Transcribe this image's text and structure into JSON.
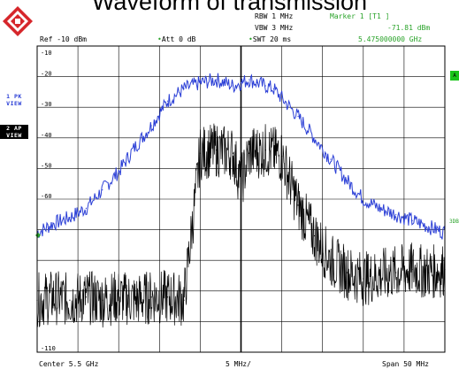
{
  "title": "Waveform of transmission",
  "header": {
    "rbw": "RBW 1 MHz",
    "vbw": "VBW 3 MHz",
    "swt": "SWT 20 ms",
    "marker_label": "Marker 1 [T1 ]",
    "marker_level": "-71.81 dBm",
    "marker_freq": "5.475000000 GHz",
    "ref": "Ref -10 dBm",
    "att": "Att  0 dB"
  },
  "traces": {
    "t1_line1": "1 PK",
    "t1_line2": "VIEW",
    "t2_line1": "2 AP",
    "t2_line2": "VIEW"
  },
  "side_labels": {
    "a": "A",
    "three_d": "3DB"
  },
  "footer": {
    "center": "Center 5.5 GHz",
    "div": "5 MHz/",
    "span": "Span 50 MHz"
  },
  "colors": {
    "trace1": "#2b3fd6",
    "trace2": "#000000",
    "grid": "#000000",
    "status_green": "#2aa32a",
    "logo_red": "#d6262b"
  },
  "chart_data": {
    "type": "line",
    "xlabel": "",
    "ylabel": "",
    "x_unit": "MHz",
    "y_unit": "dBm",
    "xlim": [
      5475,
      5525
    ],
    "ylim": [
      -110,
      -10
    ],
    "yticks": [
      -10,
      -20,
      -30,
      -40,
      -50,
      -60,
      -70,
      -80,
      -90,
      -100,
      -110
    ],
    "ytick_labels": [
      "-10",
      "-20",
      "-30",
      "-40",
      "-50",
      "-60",
      "",
      "",
      "",
      "",
      "-110"
    ],
    "grid": true,
    "marker": {
      "x": 5475,
      "y": -71.81
    },
    "series": [
      {
        "name": "1 PK VIEW",
        "x": [
          5475,
          5477,
          5479,
          5481,
          5483,
          5485,
          5487,
          5489,
          5491,
          5493,
          5495,
          5497,
          5498,
          5499,
          5500,
          5501,
          5502,
          5503,
          5504,
          5505,
          5507,
          5509,
          5511,
          5513,
          5515,
          5517,
          5519,
          5521,
          5523,
          5525
        ],
        "y": [
          -71,
          -68,
          -66,
          -63,
          -57,
          -51,
          -43,
          -36,
          -28,
          -24,
          -22,
          -21,
          -22,
          -23,
          -22,
          -21,
          -22,
          -23,
          -24,
          -27,
          -33,
          -40,
          -47,
          -54,
          -60,
          -63,
          -65,
          -67,
          -69,
          -71
        ]
      },
      {
        "name": "2 AP VIEW",
        "x": [
          5475,
          5477,
          5479,
          5481,
          5483,
          5485,
          5487,
          5489,
          5491,
          5493,
          5495,
          5497,
          5499,
          5500,
          5501,
          5503,
          5505,
          5507,
          5509,
          5511,
          5513,
          5515,
          5517,
          5519,
          5521,
          5523,
          5525
        ],
        "y": [
          -93,
          -92,
          -93,
          -92,
          -93,
          -92,
          -93,
          -92,
          -92,
          -93,
          -45,
          -44,
          -45,
          -55,
          -45,
          -44,
          -46,
          -62,
          -72,
          -80,
          -84,
          -86,
          -85,
          -84,
          -83,
          -84,
          -83
        ]
      }
    ]
  }
}
